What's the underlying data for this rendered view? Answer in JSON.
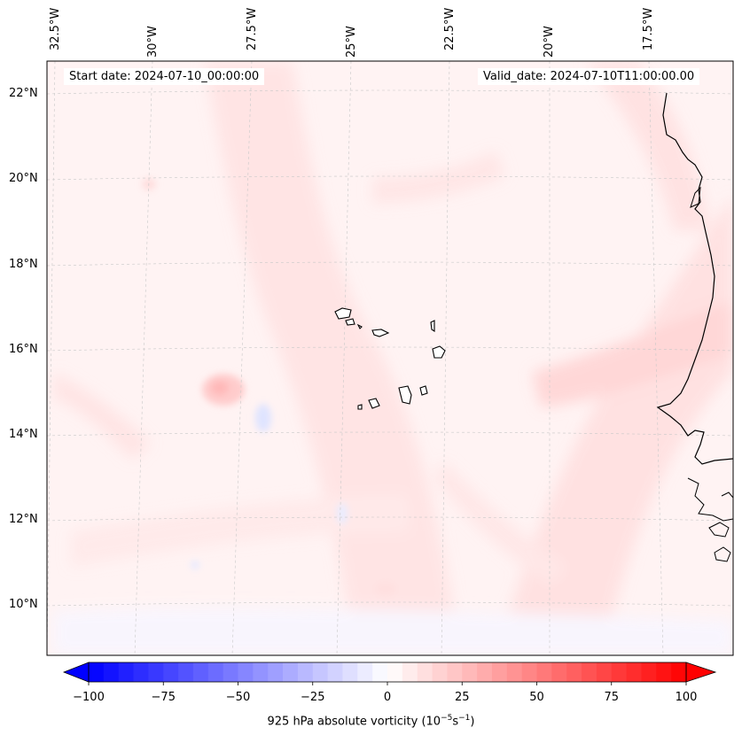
{
  "map": {
    "start_date": "Start date: 2024-07-10_00:00:00",
    "valid_date": "Valid_date: 2024-07-10T11:00:00.00",
    "longitude_labels": [
      "32.5°W",
      "30°W",
      "27.5°W",
      "25°W",
      "22.5°W",
      "20°W",
      "17.5°W"
    ],
    "latitude_labels": [
      "22°N",
      "20°N",
      "18°N",
      "16°N",
      "14°N",
      "12°N",
      "10°N"
    ]
  },
  "colorbar": {
    "min": -100,
    "max": 100,
    "ticks": [
      "−100",
      "−75",
      "−50",
      "−25",
      "0",
      "25",
      "50",
      "75",
      "100"
    ],
    "label_prefix": "925 hPa absolute vorticity (10",
    "label_exp1": "−5",
    "label_mid": "s",
    "label_exp2": "−1",
    "label_suffix": ")",
    "negative_color": "#0000ff",
    "positive_color": "#ff0000"
  }
}
